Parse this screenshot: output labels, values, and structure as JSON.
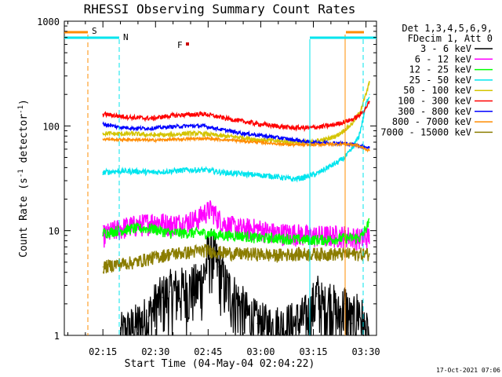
{
  "chart_data": {
    "type": "line",
    "title": "RHESSI Observing Summary Count Rates",
    "xlabel": "Start Time (04-May-04 02:04:22)",
    "ylabel_main": "Count Rate (s",
    "ylabel_sup1": "-1",
    "ylabel_mid": " detector",
    "ylabel_sup2": "-1",
    "ylabel_end": ")",
    "yscale": "log",
    "ylim": [
      1,
      1000
    ],
    "xlim_minutes": [
      0,
      89
    ],
    "x_ticks": [
      "02:15",
      "02:30",
      "02:45",
      "03:00",
      "03:15",
      "03:30"
    ],
    "y_ticks": [
      "1",
      "10",
      "100",
      "1000"
    ],
    "legend_header": [
      "Det 1,3,4,5,6,9,",
      "FDecim 1, Att 0"
    ],
    "footer_date": "17-Oct-2021 07:06",
    "markers": {
      "S_label": "S",
      "N_label": "N",
      "F_label": "F",
      "S_color": "#ff8c00",
      "N_color": "#00e5ee",
      "F_color": "#cc0000"
    },
    "series": [
      {
        "name": "3 - 6 keV",
        "color": "#000000",
        "x": [
          16,
          20,
          24,
          26,
          28,
          30,
          32,
          35,
          38,
          40,
          41,
          42,
          44,
          46,
          48,
          50,
          52,
          55,
          58,
          62,
          66,
          70,
          72,
          74,
          76,
          78,
          80,
          82,
          84,
          86,
          87
        ],
        "y": [
          1.0,
          1.2,
          1.5,
          2.0,
          2.3,
          2.6,
          2.7,
          2.8,
          3.0,
          4.0,
          6.0,
          6.5,
          4.5,
          3.0,
          2.5,
          2.0,
          1.6,
          1.3,
          1.2,
          1.2,
          1.3,
          1.6,
          2.5,
          1.8,
          2.2,
          1.5,
          2.0,
          1.3,
          1.8,
          1.0,
          1.0
        ]
      },
      {
        "name": "6 - 12 keV",
        "color": "#ff00ff",
        "x": [
          11,
          14,
          18,
          22,
          26,
          30,
          34,
          38,
          40,
          42,
          44,
          46,
          50,
          55,
          60,
          65,
          70,
          75,
          80,
          84,
          86,
          87
        ],
        "y": [
          9.0,
          10.0,
          11.0,
          11.5,
          12.5,
          11.5,
          12.0,
          13.0,
          15.0,
          16.0,
          13.0,
          11.5,
          10.5,
          10.5,
          9.5,
          9.5,
          9.0,
          9.0,
          9.0,
          8.5,
          8.5,
          9.0
        ]
      },
      {
        "name": "12 - 25 keV",
        "color": "#00ff00",
        "x": [
          11,
          15,
          20,
          25,
          30,
          35,
          40,
          45,
          50,
          55,
          60,
          65,
          70,
          75,
          80,
          84,
          85,
          86,
          87
        ],
        "y": [
          9.5,
          10.0,
          10.5,
          10.5,
          9.5,
          9.5,
          9.5,
          9.0,
          9.0,
          8.5,
          8.5,
          8.3,
          8.2,
          8.2,
          8.5,
          8.5,
          9.0,
          10.5,
          12.0
        ]
      },
      {
        "name": "25 - 50 keV",
        "color": "#00e5ee",
        "x": [
          11,
          15,
          20,
          25,
          30,
          35,
          40,
          45,
          50,
          55,
          60,
          65,
          68,
          72,
          75,
          78,
          80,
          82,
          84,
          85,
          86,
          87
        ],
        "y": [
          36,
          37,
          37,
          36,
          37,
          38,
          38,
          36,
          35,
          34,
          33,
          31,
          32,
          35,
          40,
          45,
          50,
          60,
          80,
          110,
          160,
          200
        ]
      },
      {
        "name": "50 - 100 keV",
        "color": "#d4c400",
        "x": [
          11,
          15,
          20,
          25,
          30,
          35,
          40,
          45,
          50,
          55,
          60,
          65,
          70,
          75,
          78,
          80,
          82,
          84,
          85,
          86,
          87
        ],
        "y": [
          85,
          84,
          84,
          82,
          82,
          85,
          84,
          80,
          78,
          74,
          72,
          70,
          70,
          75,
          82,
          92,
          105,
          130,
          160,
          200,
          260
        ]
      },
      {
        "name": "100 - 300 keV",
        "color": "#ff0000",
        "x": [
          11,
          15,
          20,
          25,
          30,
          35,
          40,
          45,
          50,
          55,
          60,
          65,
          70,
          75,
          78,
          80,
          82,
          84,
          85,
          86,
          87
        ],
        "y": [
          130,
          125,
          120,
          118,
          125,
          128,
          130,
          120,
          112,
          105,
          100,
          96,
          96,
          100,
          105,
          110,
          115,
          125,
          135,
          150,
          170
        ]
      },
      {
        "name": "300 - 800 keV",
        "color": "#0000ff",
        "x": [
          11,
          15,
          20,
          25,
          30,
          35,
          40,
          45,
          50,
          55,
          60,
          65,
          70,
          75,
          80,
          83,
          85,
          86,
          87
        ],
        "y": [
          105,
          98,
          95,
          95,
          98,
          100,
          100,
          92,
          86,
          82,
          78,
          74,
          70,
          69,
          68,
          66,
          64,
          63,
          62
        ]
      },
      {
        "name": "800 - 7000 keV",
        "color": "#ff8c00",
        "x": [
          11,
          15,
          20,
          25,
          30,
          35,
          40,
          45,
          50,
          55,
          60,
          65,
          70,
          75,
          80,
          83,
          85,
          86,
          87
        ],
        "y": [
          75,
          74,
          74,
          73,
          74,
          75,
          76,
          74,
          72,
          70,
          68,
          66,
          66,
          67,
          67,
          66,
          62,
          60,
          58
        ]
      },
      {
        "name": "7000 - 15000 keV",
        "color": "#8b7d00",
        "x": [
          11,
          15,
          20,
          25,
          30,
          35,
          40,
          45,
          50,
          55,
          60,
          65,
          70,
          75,
          80,
          84,
          86,
          87
        ],
        "y": [
          4.5,
          4.8,
          5.0,
          5.5,
          6.0,
          6.2,
          6.5,
          6.2,
          6.0,
          6.0,
          5.8,
          6.0,
          6.0,
          6.0,
          6.0,
          6.0,
          6.0,
          6.0
        ]
      }
    ]
  }
}
